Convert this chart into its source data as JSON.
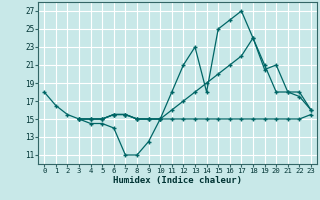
{
  "xlabel": "Humidex (Indice chaleur)",
  "bg_color": "#c8e8e8",
  "grid_color": "#ffffff",
  "line_color": "#006666",
  "xlim": [
    -0.5,
    23.5
  ],
  "ylim": [
    10,
    28
  ],
  "xticks": [
    0,
    1,
    2,
    3,
    4,
    5,
    6,
    7,
    8,
    9,
    10,
    11,
    12,
    13,
    14,
    15,
    16,
    17,
    18,
    19,
    20,
    21,
    22,
    23
  ],
  "yticks": [
    11,
    13,
    15,
    17,
    19,
    21,
    23,
    25,
    27
  ],
  "line1": {
    "x": [
      0,
      1,
      2,
      3,
      4,
      5,
      6,
      7,
      8,
      9,
      10
    ],
    "y": [
      18,
      16.5,
      15.5,
      15,
      14.5,
      14.5,
      14,
      11,
      11,
      12.5,
      15
    ]
  },
  "line2": {
    "x": [
      3,
      4,
      5,
      6,
      7,
      8,
      9,
      10,
      11,
      12,
      13,
      14,
      15,
      16,
      17,
      18,
      19,
      20,
      21,
      22,
      23
    ],
    "y": [
      15,
      15,
      15,
      15.5,
      15.5,
      15,
      15,
      15,
      18,
      21,
      23,
      18,
      25,
      26,
      27,
      24,
      20.5,
      21,
      18,
      18,
      16
    ]
  },
  "line3": {
    "x": [
      3,
      4,
      5,
      6,
      7,
      8,
      9,
      10,
      11,
      12,
      13,
      14,
      15,
      16,
      17,
      18,
      19,
      20,
      21,
      22,
      23
    ],
    "y": [
      15,
      15,
      15,
      15.5,
      15.5,
      15,
      15,
      15,
      16,
      17,
      18,
      19,
      20,
      21,
      22,
      24,
      21,
      18,
      18,
      17.5,
      16
    ]
  },
  "line4": {
    "x": [
      3,
      4,
      5,
      6,
      7,
      8,
      9,
      10,
      11,
      12,
      13,
      14,
      15,
      16,
      17,
      18,
      19,
      20,
      21,
      22,
      23
    ],
    "y": [
      15,
      15,
      15,
      15.5,
      15.5,
      15,
      15,
      15,
      15,
      15,
      15,
      15,
      15,
      15,
      15,
      15,
      15,
      15,
      15,
      15,
      15.5
    ]
  }
}
